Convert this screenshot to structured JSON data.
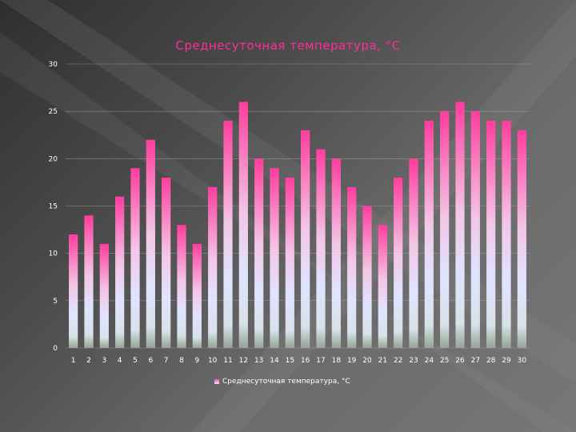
{
  "colors": {
    "bar_top": "#ff3d9e",
    "bar_mid": "#dfe3ff",
    "bar_bottom": "#9aaa98",
    "title": "#ff2d9a",
    "text": "#ffffff",
    "grid": "#b5b5b5"
  },
  "chart_data": {
    "type": "bar",
    "title": "Среднесуточная температура, °C",
    "xlabel": "",
    "ylabel": "",
    "ylim": [
      0,
      30
    ],
    "yticks": [
      "0",
      "5",
      "10",
      "15",
      "20",
      "25",
      "30"
    ],
    "categories": [
      "1",
      "2",
      "3",
      "4",
      "5",
      "6",
      "7",
      "8",
      "9",
      "10",
      "11",
      "12",
      "13",
      "14",
      "15",
      "16",
      "17",
      "18",
      "19",
      "20",
      "21",
      "22",
      "23",
      "24",
      "25",
      "26",
      "27",
      "28",
      "29",
      "30"
    ],
    "series": [
      {
        "name": "Среднесуточная температура, °C",
        "values": [
          12,
          14,
          11,
          16,
          19,
          22,
          18,
          13,
          11,
          17,
          24,
          26,
          20,
          19,
          18,
          23,
          21,
          20,
          17,
          15,
          13,
          18,
          20,
          24,
          25,
          26,
          25,
          24,
          24,
          23
        ]
      }
    ],
    "grid": true,
    "legend_position": "bottom"
  }
}
